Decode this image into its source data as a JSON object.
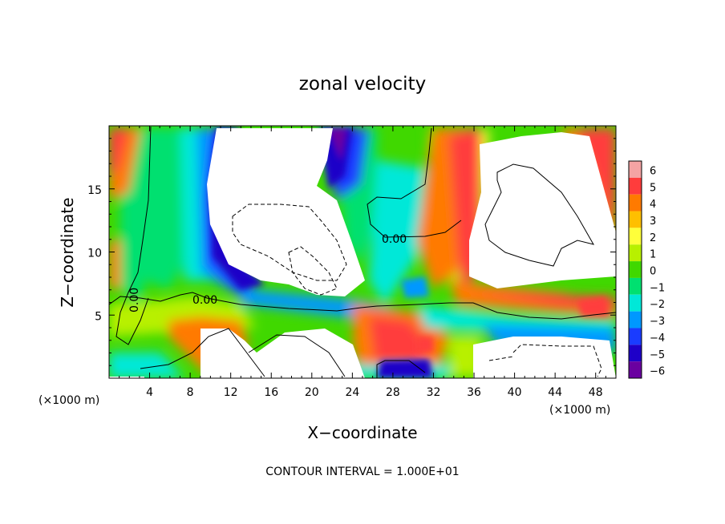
{
  "chart_data": {
    "type": "heatmap",
    "title": "zonal velocity",
    "xlabel": "X−coordinate",
    "ylabel": "Z−coordinate",
    "x_unit": "(×1000 m)",
    "z_unit": "(×1000 m)",
    "footer": "CONTOUR INTERVAL = 1.000E+01",
    "xlim": [
      0,
      50
    ],
    "ylim": [
      0,
      20
    ],
    "x_ticks": [
      4,
      8,
      12,
      16,
      20,
      24,
      28,
      32,
      36,
      40,
      44,
      48
    ],
    "y_ticks": [
      5,
      10,
      15
    ],
    "colorbar": {
      "levels": [
        6,
        5,
        4,
        3,
        2,
        1,
        0,
        -1,
        -2,
        -3,
        -4,
        -5,
        -6
      ],
      "labels": [
        "6",
        "5",
        "4",
        "3",
        "2",
        "1",
        "0",
        "−1",
        "−2",
        "−3",
        "−4",
        "−5",
        "−6"
      ],
      "colors": [
        "#f4a3a3",
        "#ff3c3c",
        "#ff7a00",
        "#ffbf00",
        "#ffff3a",
        "#b8f000",
        "#40d800",
        "#00e070",
        "#00e8d8",
        "#0098ff",
        "#1a3cff",
        "#1e00c8",
        "#6a00a0"
      ]
    },
    "contour_labels": [
      "0.00",
      "0.00",
      "0.00"
    ],
    "overflow_color": "#ffffff"
  }
}
